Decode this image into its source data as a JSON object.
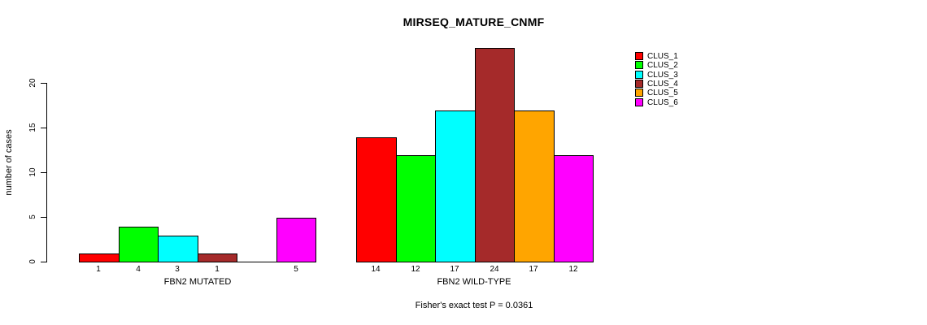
{
  "title": "MIRSEQ_MATURE_CNMF",
  "chart_data": {
    "type": "bar",
    "title": "MIRSEQ_MATURE_CNMF",
    "xlabel": "",
    "ylabel": "number of cases",
    "ylim": [
      0,
      24
    ],
    "yticks": [
      0,
      5,
      10,
      15,
      20
    ],
    "ytick_labels": [
      "0",
      "5",
      "10",
      "15",
      "20"
    ],
    "grid": false,
    "legend_position": "right",
    "series": [
      {
        "name": "CLUS_1",
        "color": "#ff0000",
        "values": [
          1,
          14
        ]
      },
      {
        "name": "CLUS_2",
        "color": "#00ff00",
        "values": [
          4,
          12
        ]
      },
      {
        "name": "CLUS_3",
        "color": "#00ffff",
        "values": [
          3,
          17
        ]
      },
      {
        "name": "CLUS_4",
        "color": "#a52a2a",
        "values": [
          1,
          24
        ]
      },
      {
        "name": "CLUS_5",
        "color": "#ffa500",
        "values": [
          0,
          17
        ]
      },
      {
        "name": "CLUS_6",
        "color": "#ff00ff",
        "values": [
          5,
          12
        ]
      }
    ],
    "groups": [
      {
        "label": "FBN2 MUTATED",
        "values": [
          1,
          4,
          3,
          1,
          0,
          5
        ],
        "bar_labels": [
          "1",
          "4",
          "3",
          "1",
          "",
          "5"
        ]
      },
      {
        "label": "FBN2 WILD-TYPE",
        "values": [
          14,
          12,
          17,
          24,
          17,
          12
        ],
        "bar_labels": [
          "14",
          "12",
          "17",
          "24",
          "17",
          "12"
        ]
      }
    ],
    "annotation": "Fisher's exact test P = 0.0361"
  },
  "legend": {
    "entries": [
      {
        "label": "CLUS_1",
        "color": "#ff0000"
      },
      {
        "label": "CLUS_2",
        "color": "#00ff00"
      },
      {
        "label": "CLUS_3",
        "color": "#00ffff"
      },
      {
        "label": "CLUS_4",
        "color": "#a52a2a"
      },
      {
        "label": "CLUS_5",
        "color": "#ffa500"
      },
      {
        "label": "CLUS_6",
        "color": "#ff00ff"
      }
    ]
  }
}
